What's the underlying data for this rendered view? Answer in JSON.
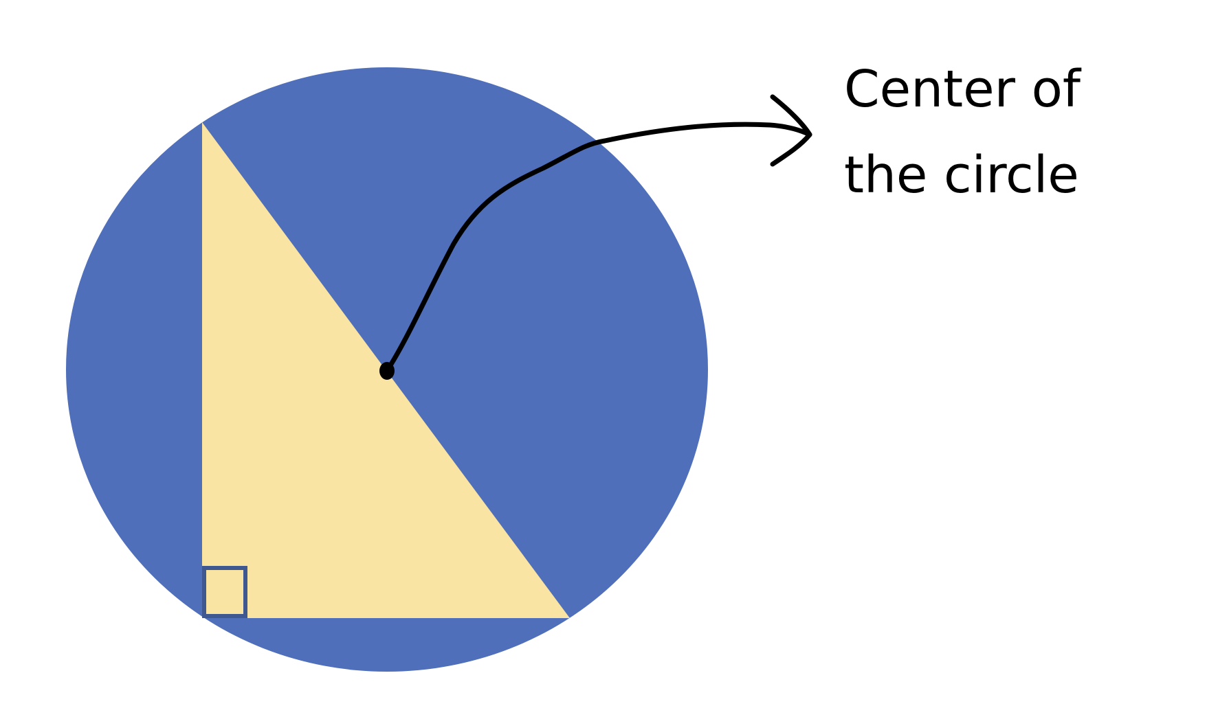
{
  "label": {
    "line1": "Center of",
    "line2": "the circle"
  },
  "colors": {
    "circle_fill": "#4F6FBA",
    "triangle_fill": "#FAE4A3",
    "right_angle_marker": "#3F5890",
    "annotation_stroke": "#000000",
    "background": "#FFFFFF"
  },
  "shapes": {
    "circle": "circle",
    "inscribed_triangle": "right-triangle",
    "right_angle_mark": "square-corner-marker",
    "center_point": "dot",
    "pointer": "curved-arrow"
  }
}
